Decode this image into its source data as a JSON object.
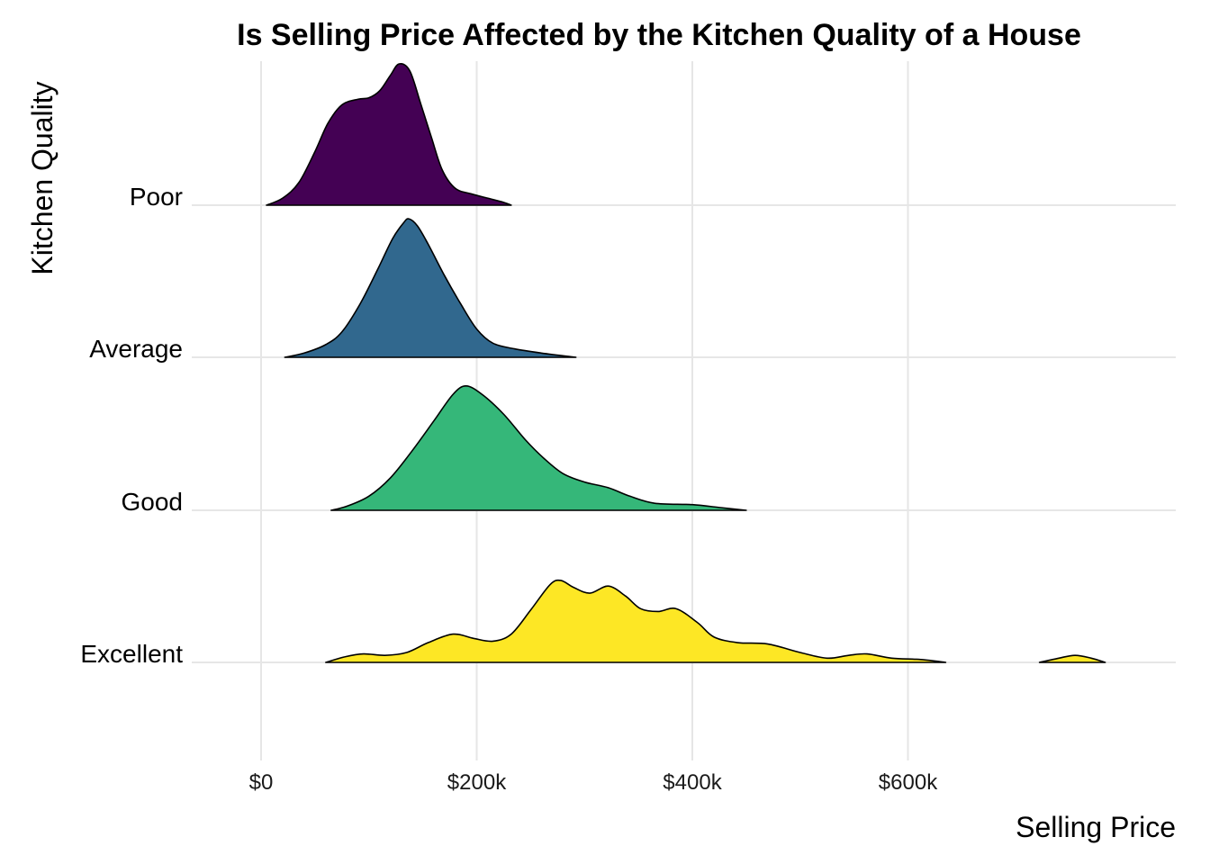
{
  "chart_data": {
    "type": "area",
    "subtype": "ridgeline-density",
    "title": "Is Selling Price Affected by the Kitchen Quality of a House",
    "xlabel": "Selling Price",
    "ylabel": "Kitchen Quality",
    "xlim": [
      -10000,
      850000
    ],
    "x_ticks": [
      {
        "value": 0,
        "label": "$0"
      },
      {
        "value": 200000,
        "label": "$200k"
      },
      {
        "value": 400000,
        "label": "$400k"
      },
      {
        "value": 600000,
        "label": "$600k"
      }
    ],
    "categories": [
      "Poor",
      "Average",
      "Good",
      "Excellent"
    ],
    "grid": true,
    "legend": "none",
    "series": [
      {
        "name": "Poor",
        "color": "#440154",
        "density": [
          [
            5000,
            0.0
          ],
          [
            20000,
            0.05
          ],
          [
            35000,
            0.16
          ],
          [
            50000,
            0.38
          ],
          [
            62000,
            0.58
          ],
          [
            75000,
            0.71
          ],
          [
            90000,
            0.75
          ],
          [
            100000,
            0.76
          ],
          [
            110000,
            0.81
          ],
          [
            120000,
            0.92
          ],
          [
            128000,
            1.0
          ],
          [
            138000,
            0.95
          ],
          [
            148000,
            0.72
          ],
          [
            158000,
            0.48
          ],
          [
            168000,
            0.25
          ],
          [
            180000,
            0.12
          ],
          [
            195000,
            0.08
          ],
          [
            210000,
            0.05
          ],
          [
            225000,
            0.02
          ],
          [
            232000,
            0.0
          ]
        ]
      },
      {
        "name": "Average",
        "color": "#31688e",
        "density": [
          [
            22000,
            0.0
          ],
          [
            40000,
            0.03
          ],
          [
            60000,
            0.09
          ],
          [
            75000,
            0.18
          ],
          [
            92000,
            0.38
          ],
          [
            108000,
            0.62
          ],
          [
            122000,
            0.84
          ],
          [
            132000,
            0.95
          ],
          [
            137000,
            0.98
          ],
          [
            145000,
            0.93
          ],
          [
            155000,
            0.8
          ],
          [
            170000,
            0.58
          ],
          [
            185000,
            0.38
          ],
          [
            200000,
            0.2
          ],
          [
            215000,
            0.1
          ],
          [
            235000,
            0.06
          ],
          [
            260000,
            0.03
          ],
          [
            292000,
            0.0
          ]
        ]
      },
      {
        "name": "Good",
        "color": "#35b779",
        "density": [
          [
            65000,
            0.0
          ],
          [
            80000,
            0.03
          ],
          [
            100000,
            0.1
          ],
          [
            120000,
            0.23
          ],
          [
            140000,
            0.42
          ],
          [
            160000,
            0.63
          ],
          [
            178000,
            0.82
          ],
          [
            190000,
            0.88
          ],
          [
            205000,
            0.82
          ],
          [
            225000,
            0.68
          ],
          [
            245000,
            0.5
          ],
          [
            262000,
            0.37
          ],
          [
            280000,
            0.26
          ],
          [
            300000,
            0.2
          ],
          [
            322000,
            0.16
          ],
          [
            342000,
            0.1
          ],
          [
            365000,
            0.05
          ],
          [
            400000,
            0.04
          ],
          [
            425000,
            0.02
          ],
          [
            450000,
            0.0
          ]
        ]
      },
      {
        "name": "Excellent",
        "color": "#fde725",
        "density": [
          [
            60000,
            0.0
          ],
          [
            78000,
            0.04
          ],
          [
            95000,
            0.06
          ],
          [
            115000,
            0.05
          ],
          [
            135000,
            0.07
          ],
          [
            155000,
            0.14
          ],
          [
            178000,
            0.2
          ],
          [
            197000,
            0.17
          ],
          [
            215000,
            0.15
          ],
          [
            232000,
            0.2
          ],
          [
            250000,
            0.37
          ],
          [
            268000,
            0.55
          ],
          [
            278000,
            0.58
          ],
          [
            290000,
            0.53
          ],
          [
            305000,
            0.49
          ],
          [
            322000,
            0.54
          ],
          [
            338000,
            0.47
          ],
          [
            352000,
            0.38
          ],
          [
            368000,
            0.36
          ],
          [
            385000,
            0.38
          ],
          [
            405000,
            0.28
          ],
          [
            420000,
            0.18
          ],
          [
            442000,
            0.14
          ],
          [
            470000,
            0.13
          ],
          [
            500000,
            0.07
          ],
          [
            525000,
            0.03
          ],
          [
            545000,
            0.05
          ],
          [
            562000,
            0.06
          ],
          [
            585000,
            0.03
          ],
          [
            612000,
            0.02
          ],
          [
            635000,
            0.0
          ]
        ],
        "density_extra": [
          [
            722000,
            0.0
          ],
          [
            740000,
            0.03
          ],
          [
            755000,
            0.05
          ],
          [
            770000,
            0.03
          ],
          [
            783000,
            0.0
          ]
        ]
      }
    ]
  }
}
